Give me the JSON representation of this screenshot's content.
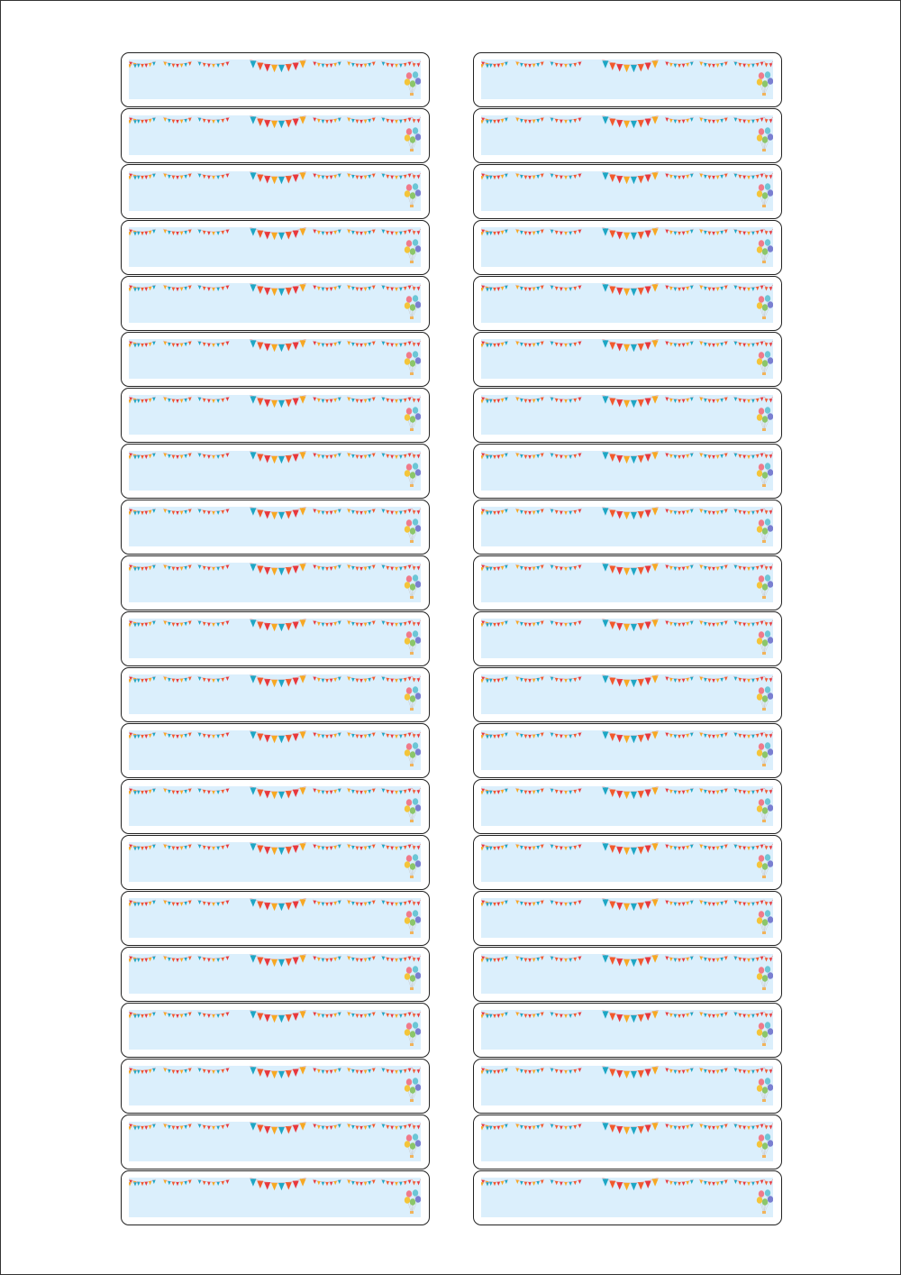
{
  "sheet": {
    "rows": 21,
    "columns": 2,
    "label_text": ""
  },
  "decoration": {
    "top": "bunting",
    "corner": "balloons"
  },
  "colors": {
    "label_fill": "#dbeffc",
    "label_border": "#222222",
    "bunting": [
      "#e8383d",
      "#f7a823",
      "#1ea7c5",
      "#f25a2c"
    ],
    "balloons": [
      "#f07a8a",
      "#6cc6d6",
      "#f4c53a",
      "#8cc66a",
      "#7a7fd1"
    ]
  }
}
